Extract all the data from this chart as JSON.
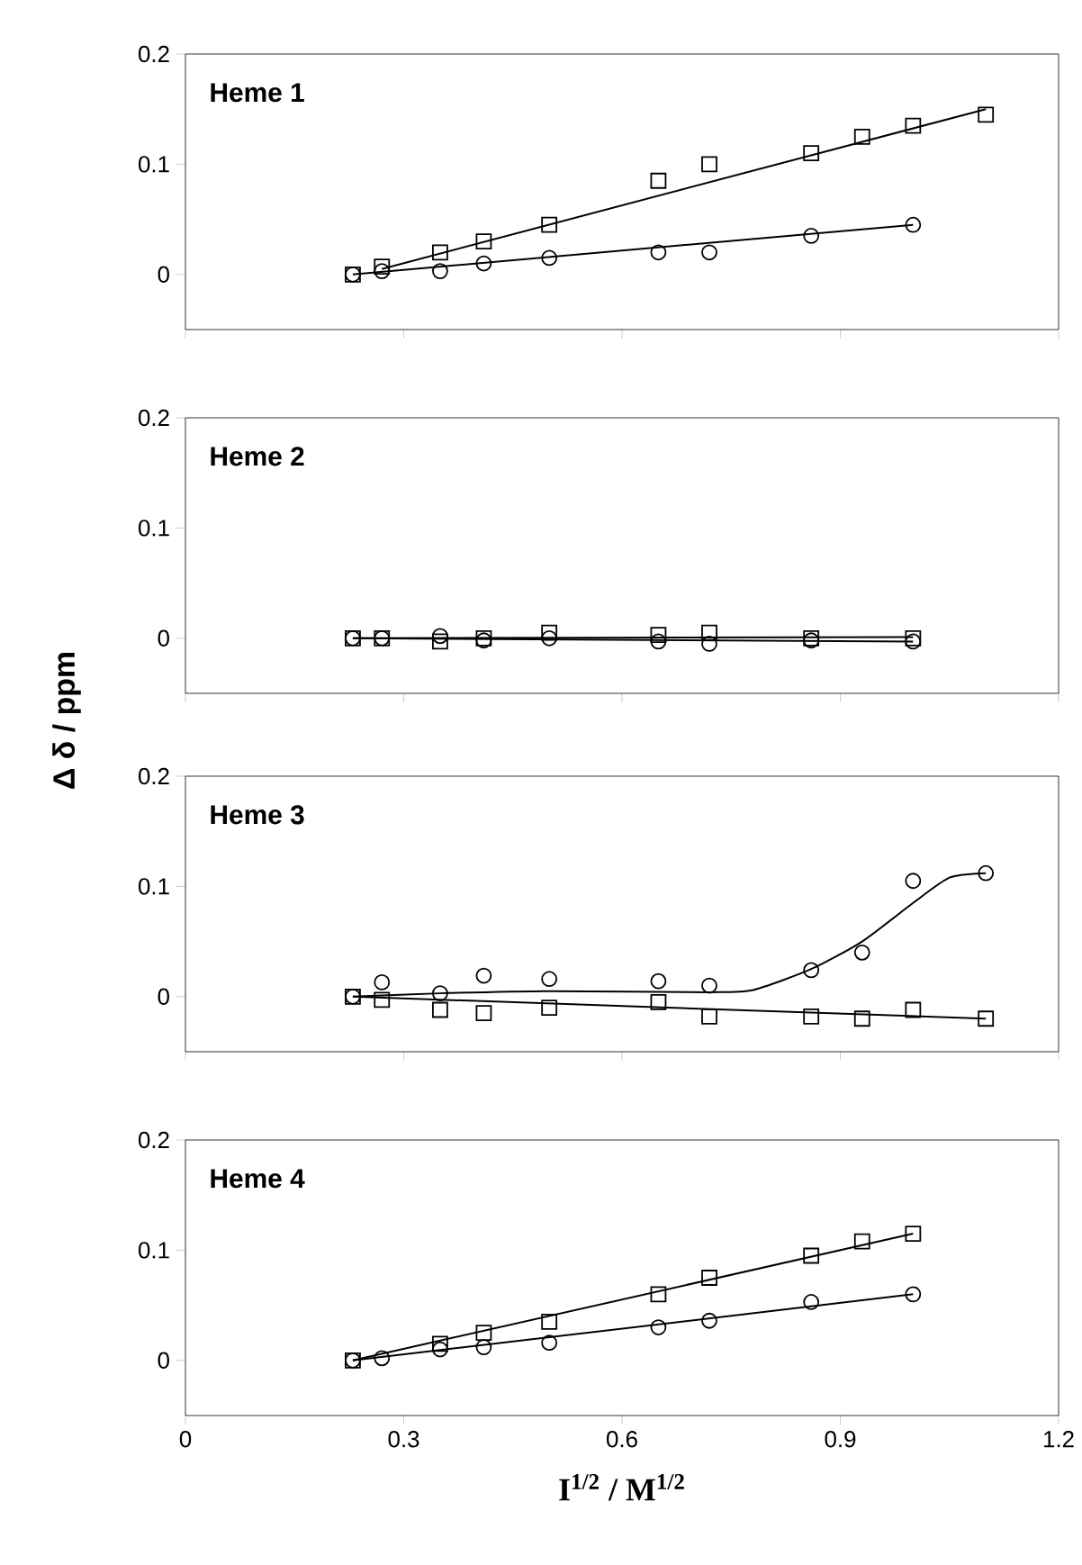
{
  "chart_data": [
    {
      "type": "scatter",
      "title": "Heme 1",
      "xlim": [
        0,
        1.2
      ],
      "xticks": [
        0,
        0.3,
        0.6,
        0.9,
        1.2
      ],
      "ylim": [
        -0.05,
        0.2
      ],
      "yticks": [
        0,
        0.1,
        0.2
      ],
      "tick_labels": "y",
      "series": [
        {
          "type": "scatter",
          "marker": "square",
          "color": "#000000",
          "x": [
            0.23,
            0.27,
            0.35,
            0.41,
            0.5,
            0.65,
            0.72,
            0.86,
            0.93,
            1.0,
            1.1
          ],
          "values": [
            0,
            0.007,
            0.02,
            0.03,
            0.045,
            0.085,
            0.1,
            0.11,
            0.125,
            0.135,
            0.145
          ]
        },
        {
          "type": "scatter",
          "marker": "circle",
          "color": "#000000",
          "x": [
            0.23,
            0.27,
            0.35,
            0.41,
            0.5,
            0.65,
            0.72,
            0.86,
            1.0
          ],
          "values": [
            0,
            0.003,
            0.003,
            0.01,
            0.015,
            0.02,
            0.02,
            0.035,
            0.045
          ]
        },
        {
          "type": "line",
          "marker": "none",
          "color": "#000000",
          "x": [
            0.27,
            1.1
          ],
          "values": [
            0.005,
            0.15
          ]
        },
        {
          "type": "line",
          "marker": "none",
          "color": "#000000",
          "x": [
            0.23,
            1.0
          ],
          "values": [
            0,
            0.045
          ]
        }
      ]
    },
    {
      "type": "scatter",
      "title": "Heme 2",
      "ylabel": "Δ δ / ppm",
      "xlim": [
        0,
        1.2
      ],
      "xticks": [
        0,
        0.3,
        0.6,
        0.9,
        1.2
      ],
      "ylim": [
        -0.05,
        0.2
      ],
      "yticks": [
        0,
        0.1,
        0.2
      ],
      "tick_labels": "y",
      "series": [
        {
          "type": "scatter",
          "marker": "square",
          "color": "#000000",
          "x": [
            0.23,
            0.27,
            0.35,
            0.41,
            0.5,
            0.65,
            0.72,
            0.86,
            1.0
          ],
          "values": [
            0,
            0,
            -0.003,
            0,
            0.005,
            0.003,
            0.005,
            0,
            0
          ]
        },
        {
          "type": "scatter",
          "marker": "circle",
          "color": "#000000",
          "x": [
            0.23,
            0.27,
            0.35,
            0.41,
            0.5,
            0.65,
            0.72,
            0.86,
            1.0
          ],
          "values": [
            0,
            0,
            0.002,
            -0.002,
            0,
            -0.003,
            -0.005,
            -0.002,
            -0.003
          ]
        },
        {
          "type": "line",
          "marker": "none",
          "color": "#000000",
          "x": [
            0.23,
            1.0
          ],
          "values": [
            0,
            0.001
          ]
        },
        {
          "type": "line",
          "marker": "none",
          "color": "#000000",
          "x": [
            0.23,
            1.0
          ],
          "values": [
            0,
            -0.003
          ]
        }
      ]
    },
    {
      "type": "scatter",
      "title": "Heme 3",
      "xlim": [
        0,
        1.2
      ],
      "xticks": [
        0,
        0.3,
        0.6,
        0.9,
        1.2
      ],
      "ylim": [
        -0.05,
        0.2
      ],
      "yticks": [
        0,
        0.1,
        0.2
      ],
      "tick_labels": "y",
      "series": [
        {
          "type": "scatter",
          "marker": "square",
          "color": "#000000",
          "x": [
            0.23,
            0.27,
            0.35,
            0.41,
            0.5,
            0.65,
            0.72,
            0.86,
            0.93,
            1.0,
            1.1
          ],
          "values": [
            0,
            -0.003,
            -0.012,
            -0.015,
            -0.01,
            -0.005,
            -0.018,
            -0.018,
            -0.02,
            -0.012,
            -0.02
          ]
        },
        {
          "type": "scatter",
          "marker": "circle",
          "color": "#000000",
          "x": [
            0.23,
            0.27,
            0.35,
            0.41,
            0.5,
            0.65,
            0.72,
            0.86,
            0.93,
            1.0,
            1.1
          ],
          "values": [
            0,
            0.013,
            0.003,
            0.019,
            0.016,
            0.014,
            0.01,
            0.024,
            0.04,
            0.105,
            0.112
          ]
        },
        {
          "type": "line",
          "marker": "none",
          "color": "#000000",
          "x": [
            0.23,
            1.1
          ],
          "values": [
            0,
            -0.02
          ]
        },
        {
          "type": "line",
          "marker": "none",
          "color": "#000000",
          "x": [
            0.23,
            0.35,
            0.5,
            0.72,
            0.78,
            0.86,
            0.93,
            1.0,
            1.05,
            1.1
          ],
          "values": [
            0,
            0.003,
            0.005,
            0.004,
            0.006,
            0.025,
            0.05,
            0.085,
            0.108,
            0.112
          ]
        }
      ]
    },
    {
      "type": "scatter",
      "title": "Heme 4",
      "xlabel": "I$^{1/2}$ / M$^{1/2}$",
      "xlim": [
        0,
        1.2
      ],
      "xticks": [
        0,
        0.3,
        0.6,
        0.9,
        1.2
      ],
      "ylim": [
        -0.05,
        0.2
      ],
      "yticks": [
        0,
        0.1,
        0.2
      ],
      "series": [
        {
          "type": "scatter",
          "marker": "square",
          "color": "#000000",
          "x": [
            0.23,
            0.35,
            0.41,
            0.5,
            0.65,
            0.72,
            0.86,
            0.93,
            1.0
          ],
          "values": [
            0,
            0.015,
            0.025,
            0.035,
            0.06,
            0.075,
            0.095,
            0.108,
            0.115
          ]
        },
        {
          "type": "scatter",
          "marker": "circle",
          "color": "#000000",
          "x": [
            0.23,
            0.27,
            0.35,
            0.41,
            0.5,
            0.65,
            0.72,
            0.86,
            1.0
          ],
          "values": [
            0,
            0.002,
            0.01,
            0.012,
            0.016,
            0.03,
            0.036,
            0.053,
            0.06
          ]
        },
        {
          "type": "line",
          "marker": "none",
          "color": "#000000",
          "x": [
            0.23,
            1.0
          ],
          "values": [
            0,
            0.115
          ]
        },
        {
          "type": "line",
          "marker": "none",
          "color": "#000000",
          "x": [
            0.23,
            1.0
          ],
          "values": [
            0,
            0.06
          ]
        }
      ]
    }
  ]
}
